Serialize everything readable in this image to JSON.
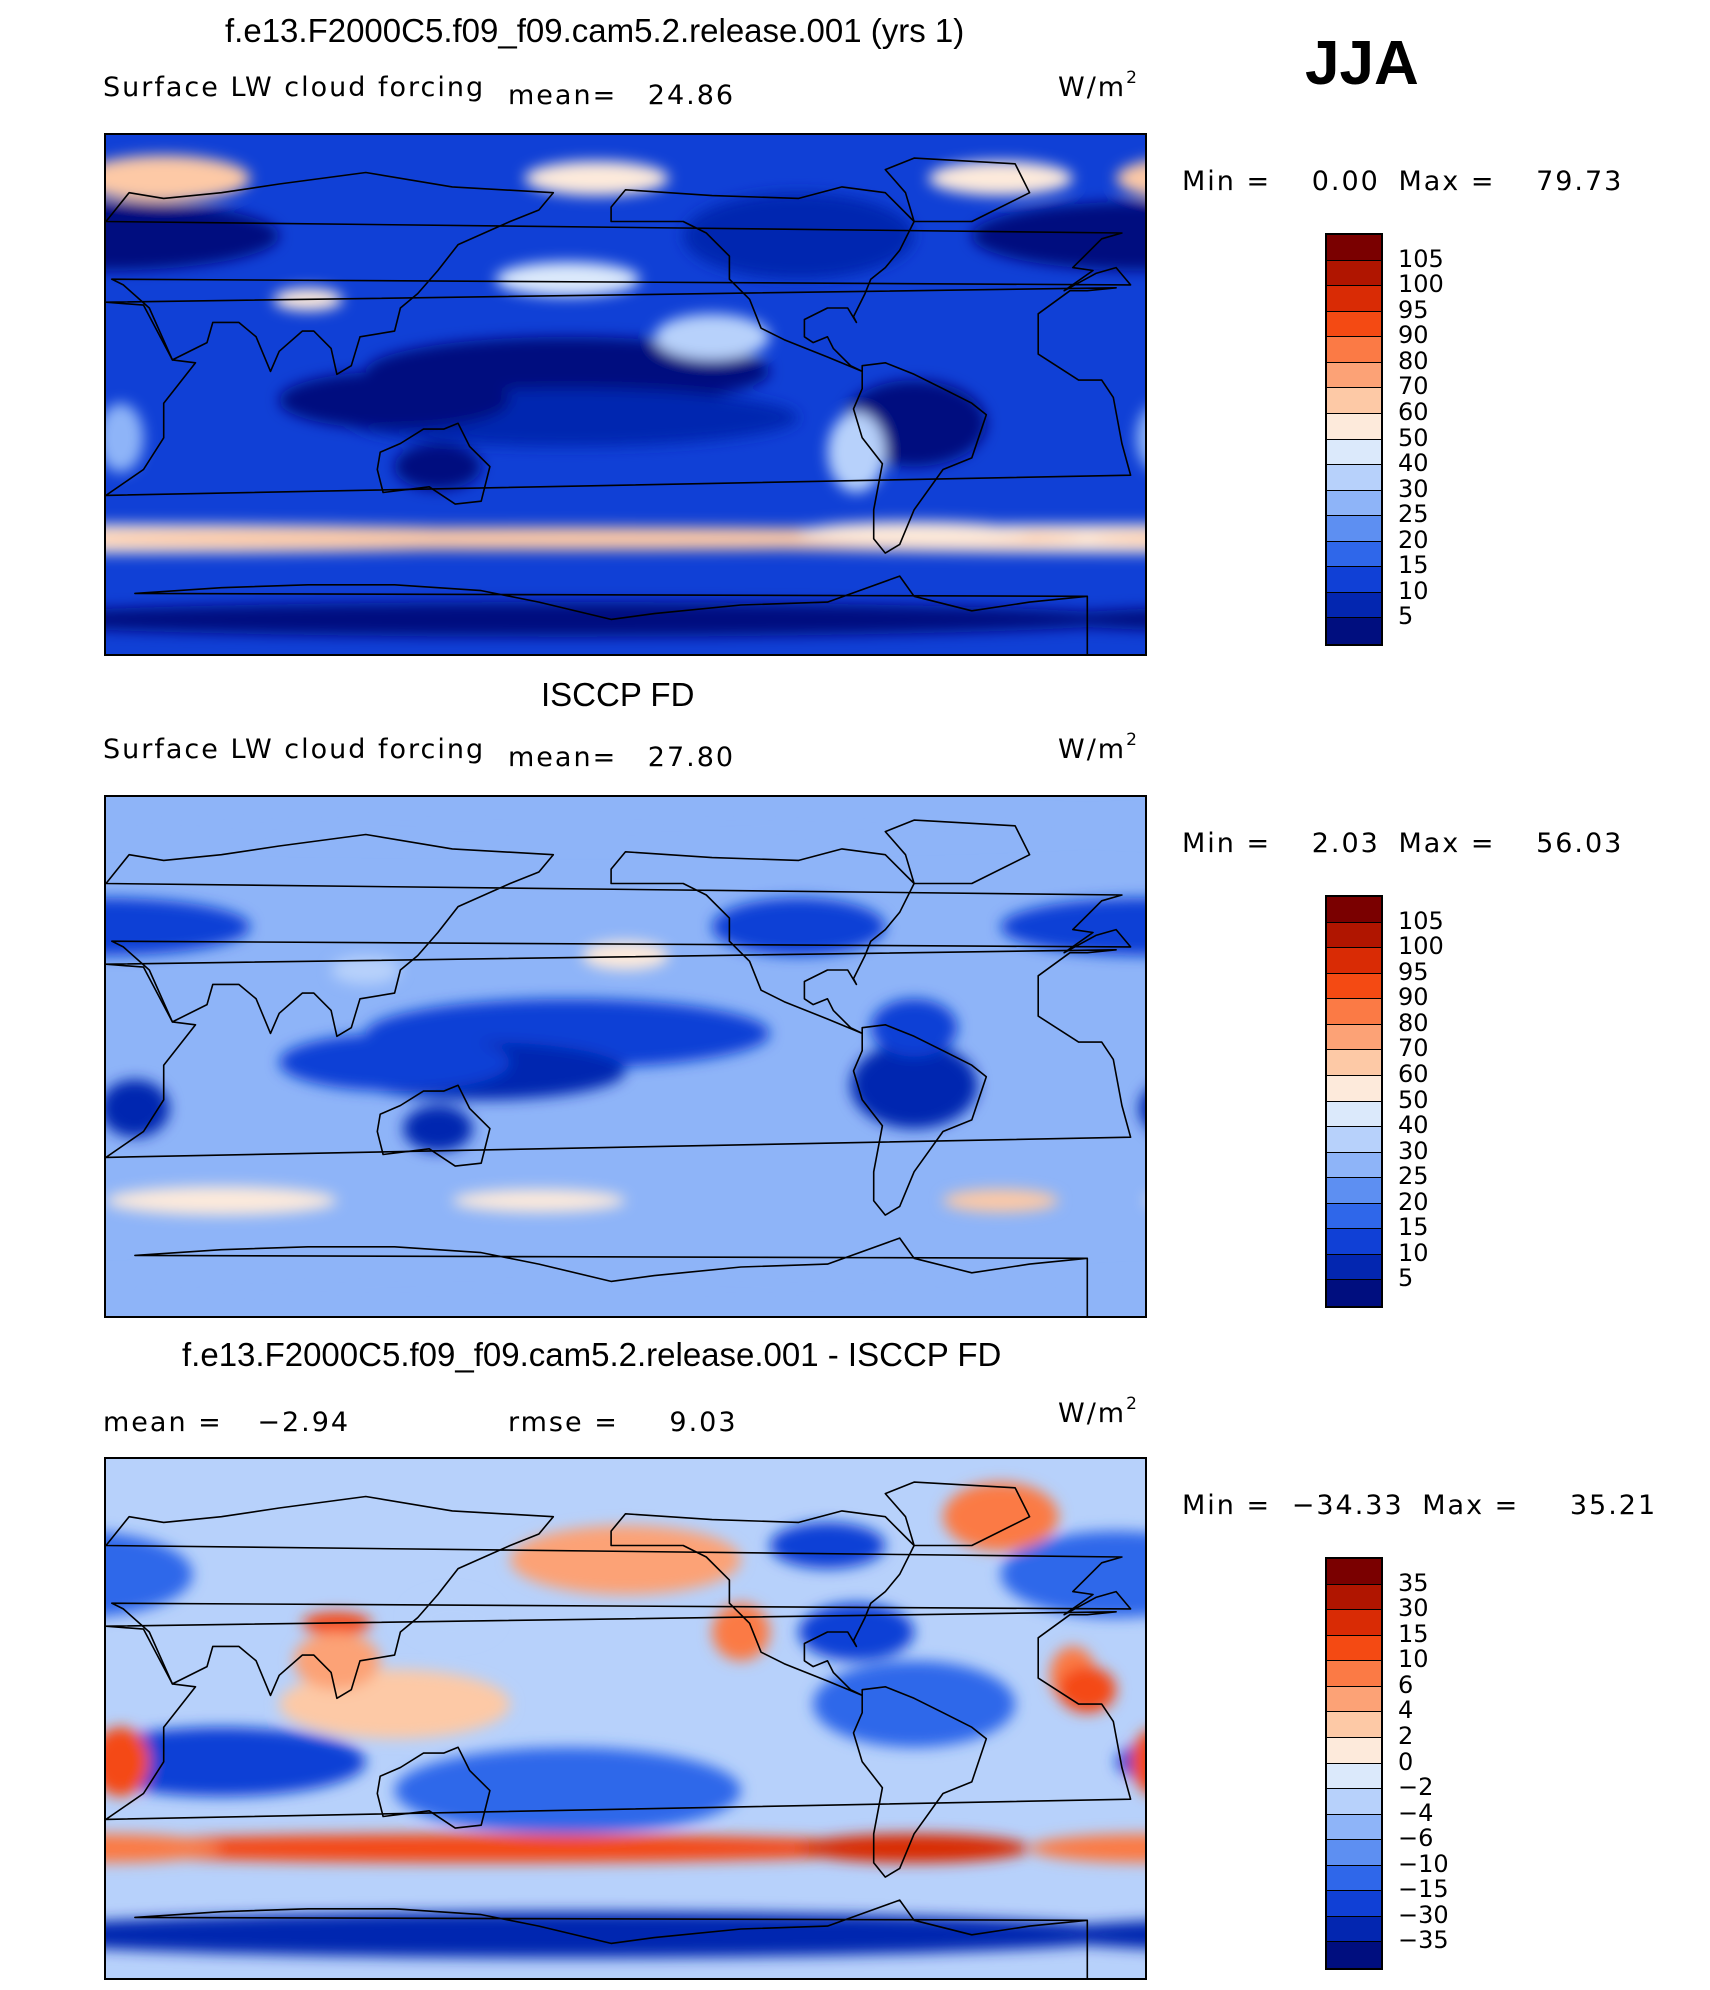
{
  "season": "JJA",
  "unit_base": "W/m",
  "unit_exp": "2",
  "panels": [
    {
      "title": "f.e13.F2000C5.f09_f09.cam5.2.release.001 (yrs 1)",
      "variable": "Surface LW cloud forcing",
      "stat1_label": "mean=",
      "stat1_value": "24.86",
      "min_label": "Min =",
      "min_value": "0.00",
      "max_label": "Max =",
      "max_value": "79.73"
    },
    {
      "title": "ISCCP FD",
      "variable": "Surface LW cloud forcing",
      "stat1_label": "mean=",
      "stat1_value": "27.80",
      "min_label": "Min =",
      "min_value": "2.03",
      "max_label": "Max =",
      "max_value": "56.03"
    },
    {
      "title": "f.e13.F2000C5.f09_f09.cam5.2.release.001 - ISCCP FD",
      "stat1_label": "mean =",
      "stat1_value": "−2.94",
      "stat2_label": "rmse =",
      "stat2_value": "9.03",
      "min_label": "Min =",
      "min_value": "−34.33",
      "max_label": "Max =",
      "max_value": "35.21"
    }
  ],
  "chart_data": [
    {
      "type": "heatmap",
      "title": "f.e13.F2000C5.f09_f09.cam5.2.release.001 (yrs 1)",
      "subtitle": "Surface LW cloud forcing",
      "units": "W/m2",
      "mean": 24.86,
      "min": 0.0,
      "max": 79.73,
      "colorbar_levels": [
        "105",
        "100",
        "95",
        "90",
        "80",
        "70",
        "60",
        "50",
        "40",
        "30",
        "25",
        "20",
        "15",
        "10",
        "5"
      ],
      "colorbar_colors": [
        "#7a0000",
        "#b01500",
        "#d92b05",
        "#f44a13",
        "#fb7a45",
        "#fca276",
        "#fdc9a6",
        "#fdeadb",
        "#dbe9fb",
        "#b7d1fb",
        "#8eb4f8",
        "#5d8ff2",
        "#2f67ea",
        "#1040d6",
        "#0326b0",
        "#000e7f"
      ],
      "grid": false,
      "legend": "right"
    },
    {
      "type": "heatmap",
      "title": "ISCCP FD",
      "subtitle": "Surface LW cloud forcing",
      "units": "W/m2",
      "mean": 27.8,
      "min": 2.03,
      "max": 56.03,
      "colorbar_levels": [
        "105",
        "100",
        "95",
        "90",
        "80",
        "70",
        "60",
        "50",
        "40",
        "30",
        "25",
        "20",
        "15",
        "10",
        "5"
      ],
      "colorbar_colors": [
        "#7a0000",
        "#b01500",
        "#d92b05",
        "#f44a13",
        "#fb7a45",
        "#fca276",
        "#fdc9a6",
        "#fdeadb",
        "#dbe9fb",
        "#b7d1fb",
        "#8eb4f8",
        "#5d8ff2",
        "#2f67ea",
        "#1040d6",
        "#0326b0",
        "#000e7f"
      ],
      "grid": false,
      "legend": "right"
    },
    {
      "type": "heatmap",
      "title": "f.e13.F2000C5.f09_f09.cam5.2.release.001 - ISCCP FD",
      "units": "W/m2",
      "mean": -2.94,
      "rmse": 9.03,
      "min": -34.33,
      "max": 35.21,
      "colorbar_levels": [
        "35",
        "30",
        "15",
        "10",
        "6",
        "4",
        "2",
        "0",
        "−2",
        "−4",
        "−6",
        "−10",
        "−15",
        "−30",
        "−35"
      ],
      "colorbar_colors": [
        "#7a0000",
        "#b01500",
        "#d92b05",
        "#f44a13",
        "#fb7a45",
        "#fca276",
        "#fdc9a6",
        "#fdeadb",
        "#dbe9fb",
        "#b7d1fb",
        "#8eb4f8",
        "#5d8ff2",
        "#2f67ea",
        "#1040d6",
        "#0326b0",
        "#000e7f"
      ],
      "grid": false,
      "legend": "right"
    }
  ]
}
